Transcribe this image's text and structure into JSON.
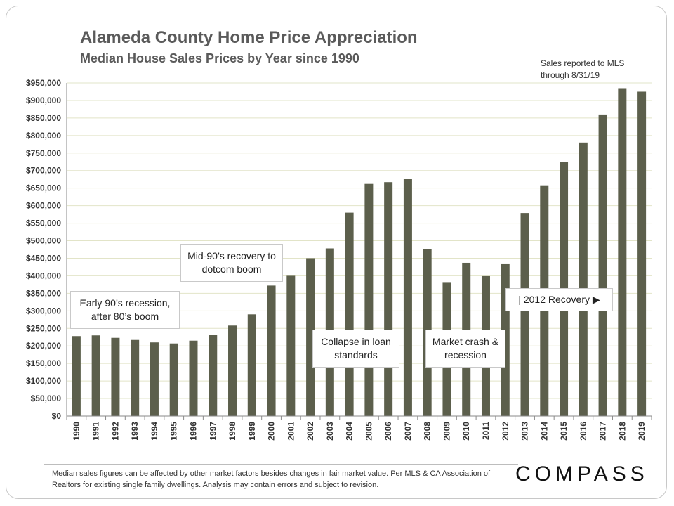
{
  "header": {
    "title": "Alameda County Home Price Appreciation",
    "subtitle": "Median House Sales Prices by Year since 1990",
    "note": "Sales reported to MLS through 8/31/19"
  },
  "annotations": {
    "early90s": "Early 90’s recession, after 80’s boom",
    "mid90s": "Mid-90’s recovery to dotcom boom",
    "collapse": "Collapse in loan standards",
    "crash": "Market crash & recession",
    "recovery": "| 2012 Recovery ▶"
  },
  "footer": {
    "disclaimer": "Median sales figures can be affected by other market factors besides changes in fair market value. Per MLS & CA Association of Realtors for existing single family dwellings. Analysis may contain errors and subject to revision.",
    "brand": "COMPASS"
  },
  "colors": {
    "bar": "#5c5f4c",
    "grid": "#e2e4c8",
    "axis": "#8a8a8a"
  },
  "chart_data": {
    "type": "bar",
    "title": "Alameda County Home Price Appreciation",
    "subtitle": "Median House Sales Prices by Year since 1990",
    "categories": [
      "1990",
      "1991",
      "1992",
      "1993",
      "1994",
      "1995",
      "1996",
      "1997",
      "1998",
      "1999",
      "2000",
      "2001",
      "2002",
      "2003",
      "2004",
      "2005",
      "2006",
      "2007",
      "2008",
      "2009",
      "2010",
      "2011",
      "2012",
      "2013",
      "2014",
      "2015",
      "2016",
      "2017",
      "2018",
      "2019"
    ],
    "values": [
      228000,
      230000,
      223000,
      217000,
      210000,
      207000,
      215000,
      232000,
      258000,
      290000,
      372000,
      400000,
      450000,
      478000,
      580000,
      662000,
      667000,
      677000,
      477000,
      382000,
      437000,
      399000,
      435000,
      579000,
      658000,
      725000,
      780000,
      860000,
      935000,
      925000
    ],
    "ylim": [
      0,
      950000
    ],
    "yticks": [
      0,
      50000,
      100000,
      150000,
      200000,
      250000,
      300000,
      350000,
      400000,
      450000,
      500000,
      550000,
      600000,
      650000,
      700000,
      750000,
      800000,
      850000,
      900000,
      950000
    ],
    "ytick_labels": [
      "$0",
      "$50,000",
      "$100,000",
      "$150,000",
      "$200,000",
      "$250,000",
      "$300,000",
      "$350,000",
      "$400,000",
      "$450,000",
      "$500,000",
      "$550,000",
      "$600,000",
      "$650,000",
      "$700,000",
      "$750,000",
      "$800,000",
      "$850,000",
      "$900,000",
      "$950,000"
    ],
    "grid": true,
    "legend": "none"
  }
}
